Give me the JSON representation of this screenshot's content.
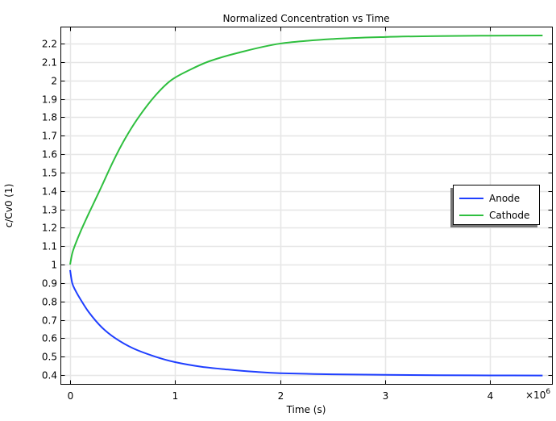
{
  "chart_data": {
    "type": "line",
    "title": "Normalized Concentration vs Time",
    "xlabel": "Time (s)",
    "ylabel": "c/Cv0 (1)",
    "x_multiplier": "×10",
    "x_multiplier_exp": "6",
    "xlim": [
      -0.08,
      4.58
    ],
    "ylim": [
      0.35,
      2.3
    ],
    "x_ticks": [
      0,
      1,
      2,
      3,
      4
    ],
    "x_tick_labels": [
      "0",
      "1",
      "2",
      "3",
      "4"
    ],
    "y_ticks": [
      0.4,
      0.5,
      0.6,
      0.7,
      0.8,
      0.9,
      1,
      1.1,
      1.2,
      1.3,
      1.4,
      1.5,
      1.6,
      1.7,
      1.8,
      1.9,
      2,
      2.1,
      2.2
    ],
    "y_tick_labels": [
      "0.4",
      "0.5",
      "0.6",
      "0.7",
      "0.8",
      "0.9",
      "1",
      "1.1",
      "1.2",
      "1.3",
      "1.4",
      "1.5",
      "1.6",
      "1.7",
      "1.8",
      "1.9",
      "2",
      "2.1",
      "2.2"
    ],
    "grid": true,
    "legend_position": "right",
    "series": [
      {
        "name": "Anode",
        "color": "#1f3fff",
        "x": [
          0,
          0.02,
          0.05,
          0.1,
          0.18,
          0.3,
          0.43,
          0.6,
          0.81,
          1.0,
          1.25,
          1.5,
          1.75,
          2.0,
          2.5,
          3.0,
          3.5,
          4.0,
          4.5
        ],
        "y": [
          0.97,
          0.9,
          0.86,
          0.81,
          0.74,
          0.66,
          0.6,
          0.545,
          0.5,
          0.47,
          0.445,
          0.43,
          0.418,
          0.41,
          0.404,
          0.401,
          0.399,
          0.398,
          0.397
        ]
      },
      {
        "name": "Cathode",
        "color": "#2fbf3f",
        "x": [
          0,
          0.02,
          0.05,
          0.1,
          0.18,
          0.28,
          0.41,
          0.52,
          0.64,
          0.8,
          0.96,
          1.15,
          1.33,
          1.6,
          2.0,
          2.5,
          3.0,
          3.5,
          4.0,
          4.5
        ],
        "y": [
          1.0,
          1.06,
          1.11,
          1.18,
          1.28,
          1.4,
          1.56,
          1.68,
          1.79,
          1.91,
          2.0,
          2.06,
          2.105,
          2.15,
          2.2,
          2.225,
          2.236,
          2.241,
          2.243,
          2.244
        ]
      }
    ]
  }
}
